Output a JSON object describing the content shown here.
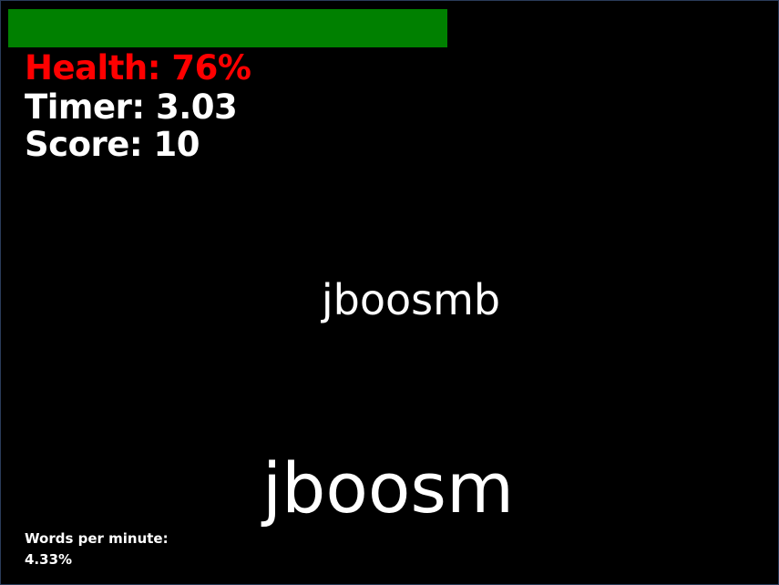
{
  "hud": {
    "health_label": "Health: 76%",
    "health_fraction": 0.76,
    "health_bar_color": "#008000",
    "health_text_color": "#ff0000",
    "timer_label": "Timer: 3.03",
    "score_label": "Score: 10"
  },
  "words": {
    "target": "jboosmb",
    "typed": "jboosm"
  },
  "stats": {
    "wpm_label": "Words per minute:",
    "wpm_value": "4.33%"
  }
}
